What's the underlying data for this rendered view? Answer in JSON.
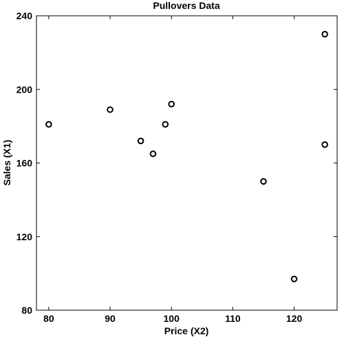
{
  "chart_data": {
    "type": "scatter",
    "title": "Pullovers Data",
    "xlabel": "Price (X2)",
    "ylabel": "Sales (X1)",
    "xlim": [
      78,
      127
    ],
    "ylim": [
      80,
      240
    ],
    "xticks": [
      80,
      90,
      100,
      110,
      120
    ],
    "yticks": [
      80,
      120,
      160,
      200,
      240
    ],
    "grid": false,
    "marker": "circle",
    "marker_color": "#000000",
    "points": [
      {
        "x": 80,
        "y": 181
      },
      {
        "x": 90,
        "y": 189
      },
      {
        "x": 95,
        "y": 172
      },
      {
        "x": 97,
        "y": 165
      },
      {
        "x": 99,
        "y": 181
      },
      {
        "x": 100,
        "y": 192
      },
      {
        "x": 115,
        "y": 150
      },
      {
        "x": 120,
        "y": 97
      },
      {
        "x": 125,
        "y": 170
      },
      {
        "x": 125,
        "y": 230
      }
    ]
  }
}
